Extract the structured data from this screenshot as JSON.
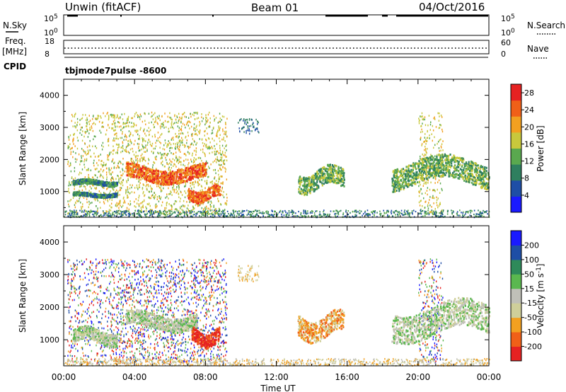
{
  "header": {
    "station": "Unwin (fitACF)",
    "beam": "Beam 01",
    "date": "04/Oct/2016"
  },
  "nsky_panel": {
    "left_label": "N.Sky",
    "right_label": "N.Search",
    "ticks": [
      "10^5",
      "10^0"
    ]
  },
  "freq_panel": {
    "left_label_1": "Freq.",
    "left_label_2": "[MHz]",
    "left_ticks": [
      "18",
      "8"
    ],
    "right_label": "Nave",
    "right_ticks": [
      "60",
      "0"
    ],
    "cpid_label": "CPID",
    "program": "tbjmode7pulse -8600"
  },
  "colors": {
    "power": [
      "#1a1aff",
      "#1e4ea6",
      "#2f7f5f",
      "#5aa84f",
      "#c8c83c",
      "#f2a020",
      "#f06018",
      "#e62222"
    ],
    "velocity": [
      "#e62222",
      "#f06018",
      "#f2a020",
      "#cfcf9a",
      "#c0c0b8",
      "#5ab84f",
      "#2e8a5a",
      "#1e4ea6",
      "#1a1aff"
    ]
  },
  "chart_data": [
    {
      "type": "heatmap",
      "name": "power",
      "xlabel": "",
      "ylabel": "Slant Range [km]",
      "x_range": [
        "00:00",
        "00:00"
      ],
      "ylim": [
        200,
        4500
      ],
      "y_ticks": [
        1000,
        2000,
        3000,
        4000
      ],
      "colorbar": {
        "label": "Power [dB]",
        "ticks": [
          4,
          8,
          12,
          16,
          20,
          24,
          28
        ],
        "range": [
          0,
          30
        ]
      },
      "features": [
        {
          "t_start": 0.5,
          "t_end": 3.0,
          "range_km": [
            1200,
            1400
          ],
          "value": 8
        },
        {
          "t_start": 0.5,
          "t_end": 3.0,
          "range_km": [
            850,
            1000
          ],
          "value": 8
        },
        {
          "t_start": 3.5,
          "t_end": 8.0,
          "range_km": [
            1300,
            1900
          ],
          "value": 24
        },
        {
          "t_start": 7.0,
          "t_end": 8.8,
          "range_km": [
            700,
            1200
          ],
          "value": 26
        },
        {
          "t_start": 13.2,
          "t_end": 15.8,
          "range_km": [
            1000,
            1800
          ],
          "value": 14
        },
        {
          "t_start": 18.5,
          "t_end": 24.0,
          "range_km": [
            1100,
            2100
          ],
          "value": 14
        }
      ]
    },
    {
      "type": "heatmap",
      "name": "velocity",
      "xlabel": "Time UT",
      "ylabel": "Slant Range [km]",
      "x_ticks": [
        "00:00",
        "04:00",
        "08:00",
        "12:00",
        "16:00",
        "20:00",
        "00:00"
      ],
      "ylim": [
        200,
        4500
      ],
      "y_ticks": [
        1000,
        2000,
        3000,
        4000
      ],
      "colorbar": {
        "label": "Velocity [m s^-1]",
        "ticks": [
          200,
          100,
          50,
          15,
          -15,
          -50,
          -100,
          -200
        ]
      },
      "features": [
        {
          "t_start": 0.5,
          "t_end": 3.0,
          "range_km": [
            850,
            1400
          ],
          "value": 0
        },
        {
          "t_start": 3.5,
          "t_end": 7.5,
          "range_km": [
            1300,
            1900
          ],
          "value": 0
        },
        {
          "t_start": 7.2,
          "t_end": 8.8,
          "range_km": [
            800,
            1400
          ],
          "value": -200
        },
        {
          "t_start": 13.2,
          "t_end": 15.8,
          "range_km": [
            1000,
            1900
          ],
          "value": -60
        },
        {
          "t_start": 18.5,
          "t_end": 24.0,
          "range_km": [
            1000,
            2200
          ],
          "value": 0
        }
      ]
    }
  ]
}
